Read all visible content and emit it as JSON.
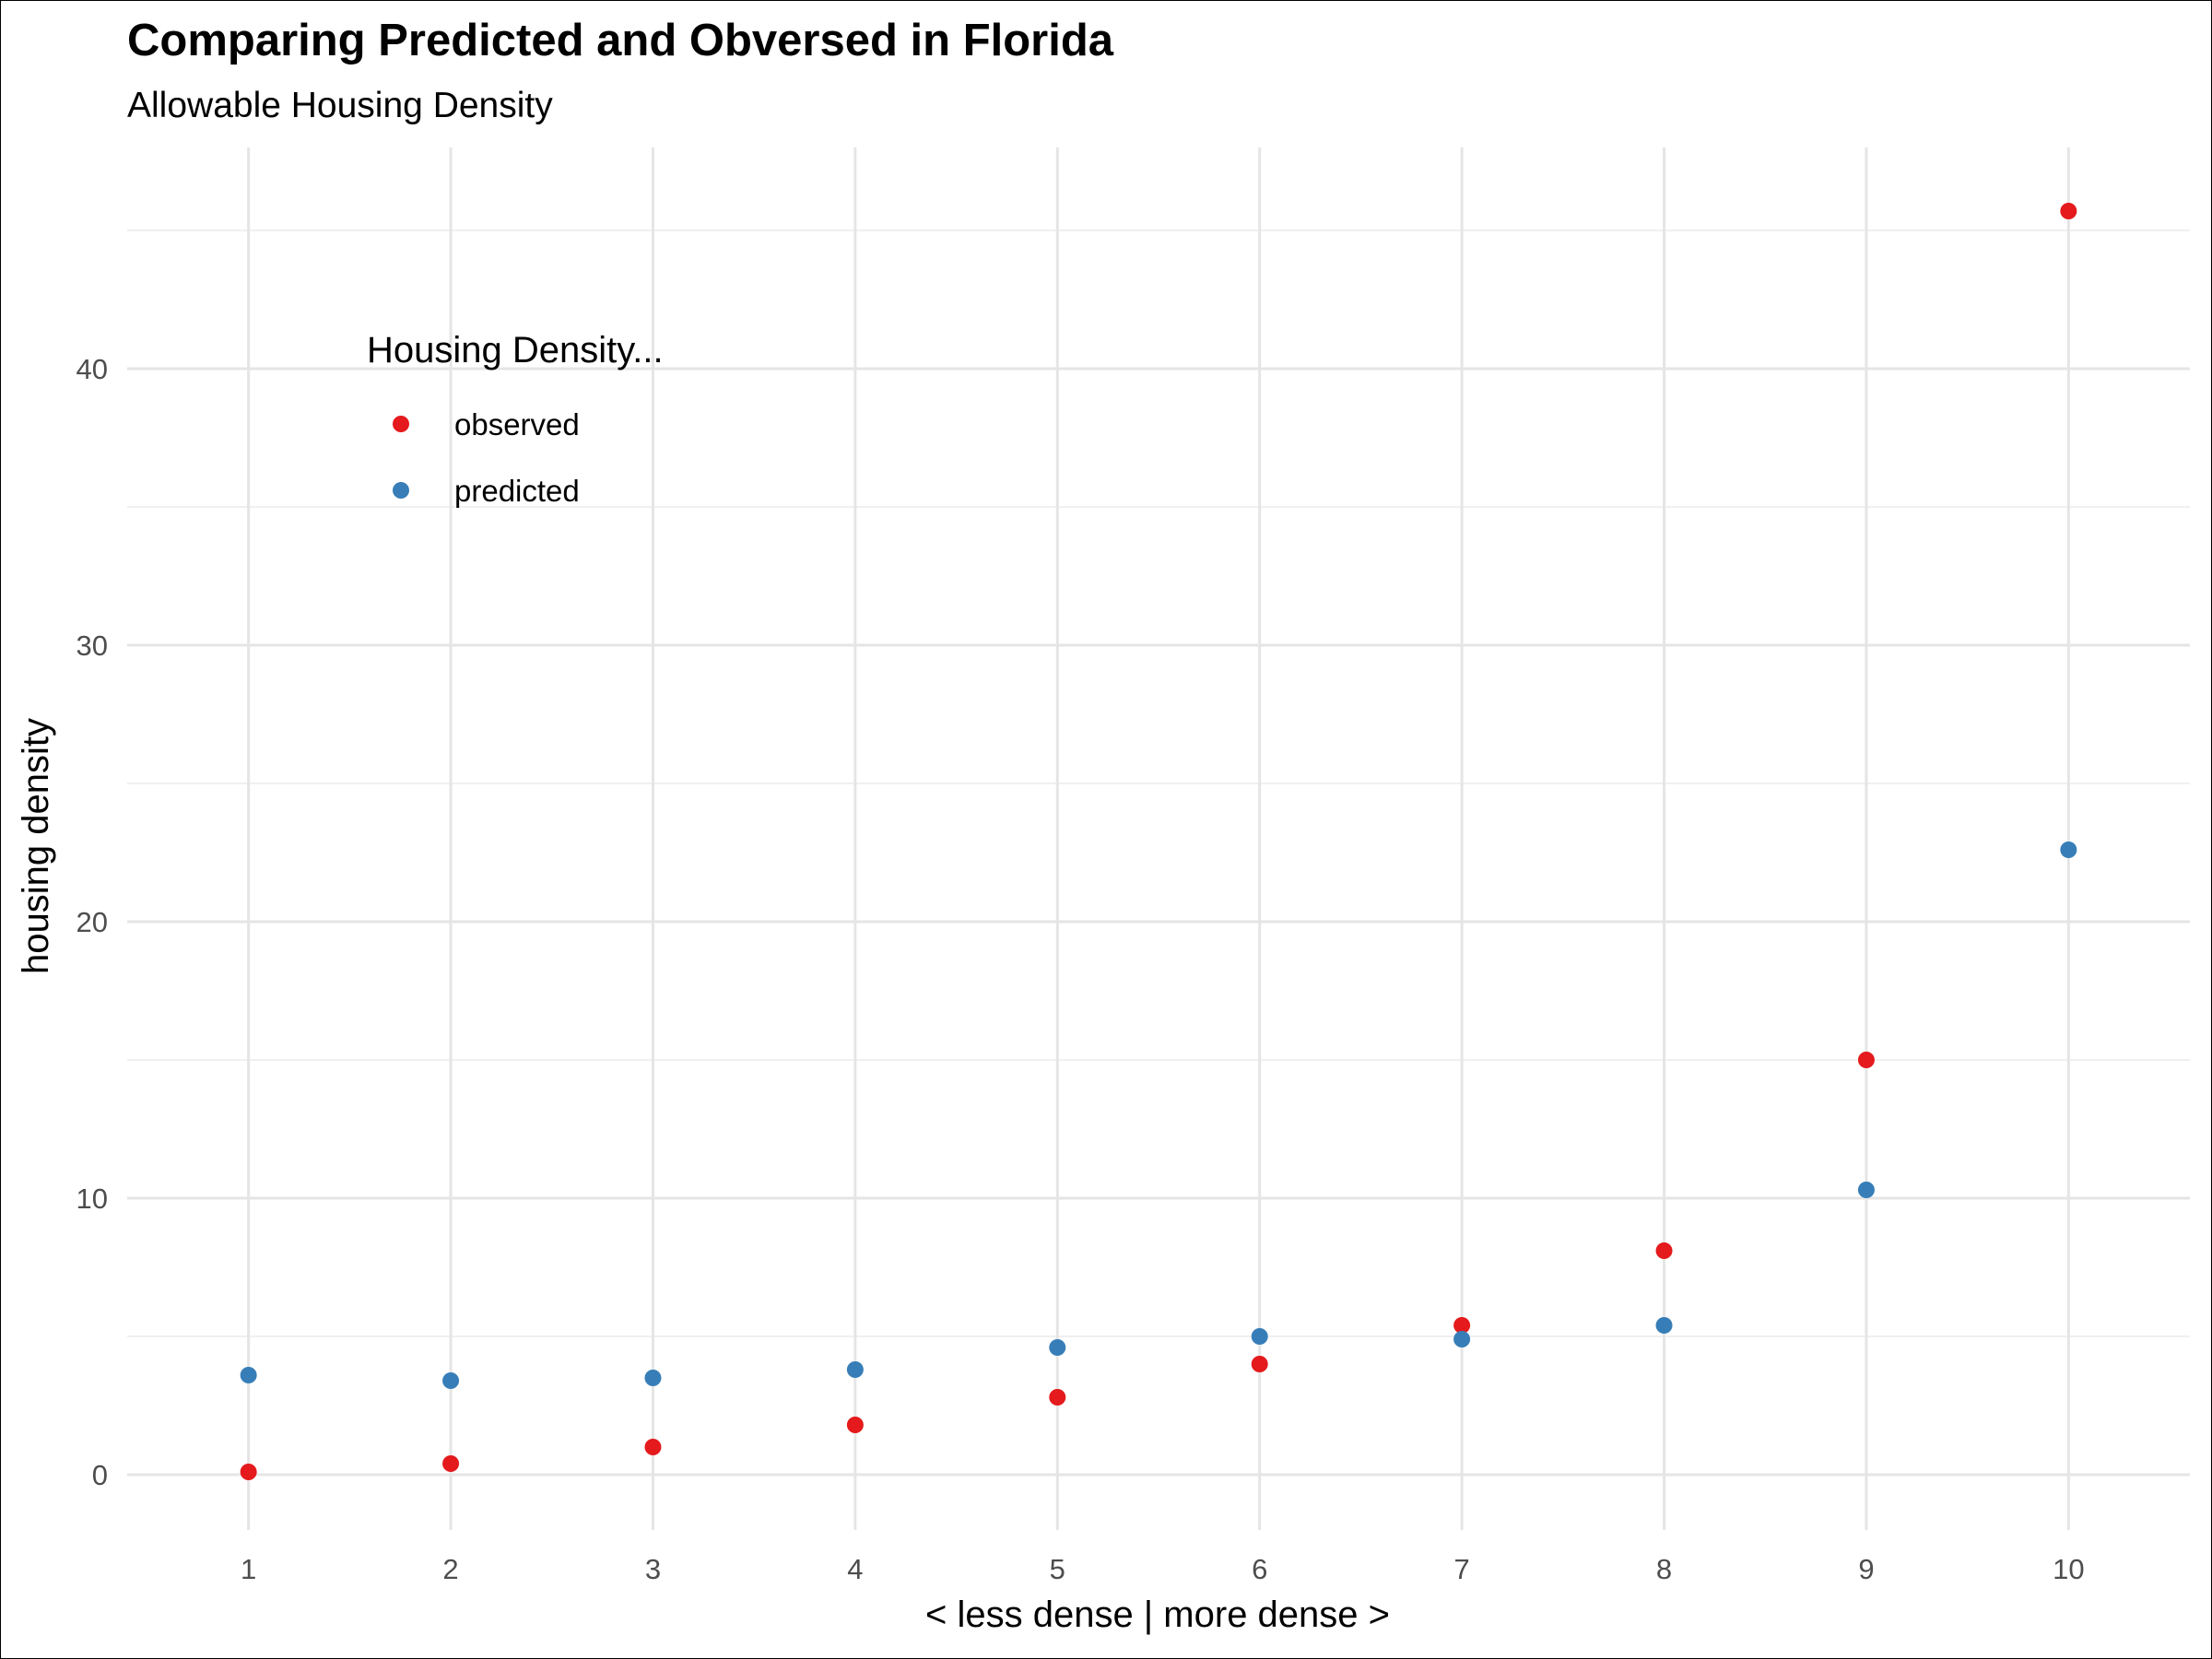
{
  "chart_data": {
    "type": "scatter",
    "title": "Comparing Predicted and Obversed in Florida",
    "subtitle": "Allowable Housing Density",
    "xlabel": "< less dense | more dense >",
    "ylabel": "housing density",
    "x": [
      1,
      2,
      3,
      4,
      5,
      6,
      7,
      8,
      9,
      10
    ],
    "x_ticks": [
      "1",
      "2",
      "3",
      "4",
      "5",
      "6",
      "7",
      "8",
      "9",
      "10"
    ],
    "y_ticks": [
      "0",
      "10",
      "20",
      "30",
      "40"
    ],
    "xlim": [
      0.4,
      10.6
    ],
    "ylim": [
      -2,
      48
    ],
    "grid": true,
    "legend": {
      "title": "Housing Density...",
      "placement": "top-left inside"
    },
    "series": [
      {
        "name": "observed",
        "color": "#E41A1C",
        "values": [
          0.1,
          0.4,
          1.0,
          1.8,
          2.8,
          4.0,
          5.4,
          8.1,
          15.0,
          45.7
        ]
      },
      {
        "name": "predicted",
        "color": "#377EB8",
        "values": [
          3.6,
          3.4,
          3.5,
          3.8,
          4.6,
          5.0,
          4.9,
          5.4,
          10.3,
          22.6
        ]
      }
    ]
  }
}
